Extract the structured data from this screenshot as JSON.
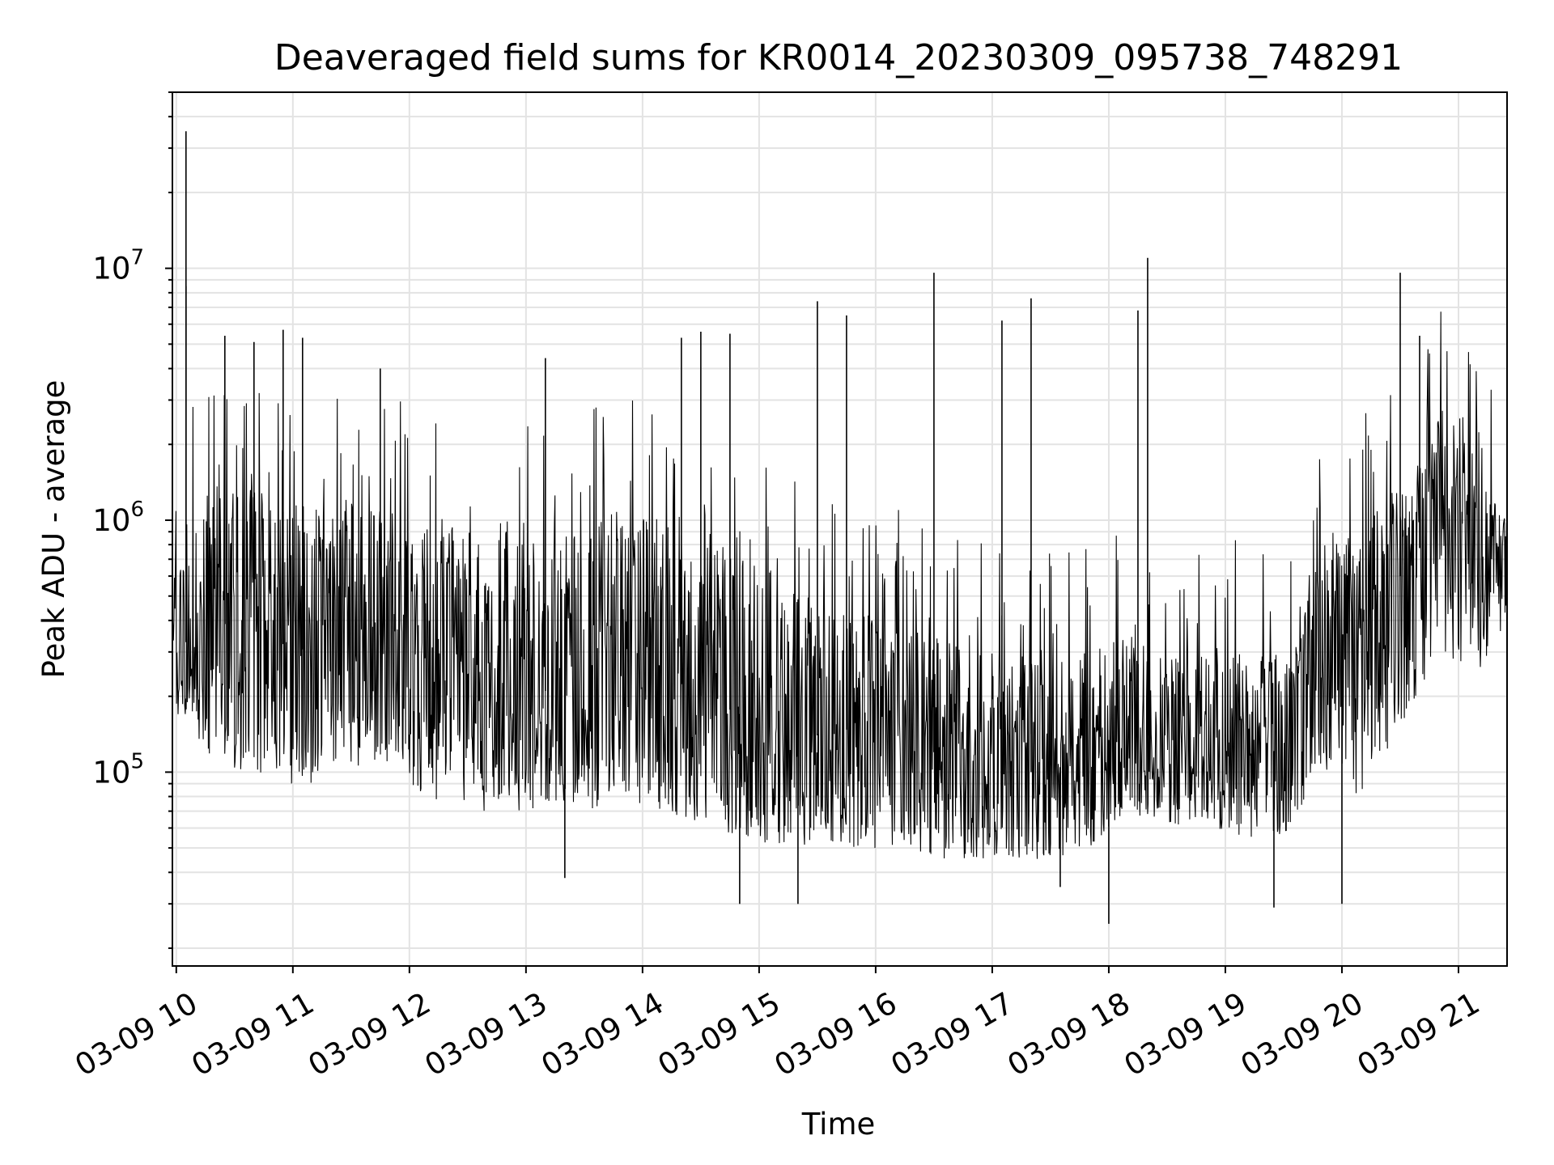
{
  "chart_data": {
    "type": "line",
    "title": "Deaveraged field sums for KR0014_20230309_095738_748291",
    "xlabel": "Time",
    "ylabel": "Peak ADU - average",
    "x_axis": {
      "kind": "time",
      "range": [
        "2023-03-09 09:58",
        "2023-03-09 21:25"
      ],
      "tick_values": [
        "2023-03-09 10:00",
        "2023-03-09 11:00",
        "2023-03-09 12:00",
        "2023-03-09 13:00",
        "2023-03-09 14:00",
        "2023-03-09 15:00",
        "2023-03-09 16:00",
        "2023-03-09 17:00",
        "2023-03-09 18:00",
        "2023-03-09 19:00",
        "2023-03-09 20:00",
        "2023-03-09 21:00"
      ],
      "tick_labels": [
        "03-09 10",
        "03-09 11",
        "03-09 12",
        "03-09 13",
        "03-09 14",
        "03-09 15",
        "03-09 16",
        "03-09 17",
        "03-09 18",
        "03-09 19",
        "03-09 20",
        "03-09 21"
      ]
    },
    "y_axis": {
      "scale": "log",
      "range": [
        17000,
        50000000
      ],
      "ticks": [
        {
          "value": 100000,
          "base": "10",
          "exp": "5"
        },
        {
          "value": 1000000,
          "base": "10",
          "exp": "6"
        },
        {
          "value": 10000000,
          "base": "10",
          "exp": "7"
        }
      ]
    },
    "grid": true,
    "line_color": "#000000",
    "series": [
      {
        "x": [
          "2023-03-09 09:58",
          "2023-03-09 10:10",
          "2023-03-09 10:30",
          "2023-03-09 10:50",
          "2023-03-09 11:10",
          "2023-03-09 11:30",
          "2023-03-09 11:50",
          "2023-03-09 12:10",
          "2023-03-09 12:30",
          "2023-03-09 12:50",
          "2023-03-09 13:10",
          "2023-03-09 13:30",
          "2023-03-09 13:50",
          "2023-03-09 14:10",
          "2023-03-09 14:30",
          "2023-03-09 14:50",
          "2023-03-09 15:10",
          "2023-03-09 15:30",
          "2023-03-09 15:50",
          "2023-03-09 16:10",
          "2023-03-09 16:30",
          "2023-03-09 16:50",
          "2023-03-09 17:10",
          "2023-03-09 17:30",
          "2023-03-09 17:50",
          "2023-03-09 18:10",
          "2023-03-09 18:30",
          "2023-03-09 18:50",
          "2023-03-09 19:10",
          "2023-03-09 19:30",
          "2023-03-09 19:50",
          "2023-03-09 20:10",
          "2023-03-09 20:30",
          "2023-03-09 20:50",
          "2023-03-09 21:10",
          "2023-03-09 21:25"
        ],
        "typical_y": [
          300000,
          350000,
          400000,
          330000,
          300000,
          320000,
          360000,
          260000,
          230000,
          220000,
          210000,
          230000,
          260000,
          250000,
          200000,
          170000,
          150000,
          140000,
          150000,
          135000,
          120000,
          110000,
          100000,
          100000,
          120000,
          150000,
          130000,
          130000,
          125000,
          120000,
          300000,
          350000,
          600000,
          1000000,
          700000,
          700000
        ],
        "spread_low_y": [
          150000,
          130000,
          100000,
          90000,
          90000,
          100000,
          100000,
          80000,
          70000,
          70000,
          70000,
          70000,
          70000,
          70000,
          60000,
          55000,
          50000,
          50000,
          50000,
          50000,
          45000,
          45000,
          45000,
          45000,
          50000,
          70000,
          60000,
          60000,
          55000,
          55000,
          100000,
          80000,
          150000,
          300000,
          250000,
          400000
        ],
        "spread_high_y": [
          700000,
          1200000,
          1500000,
          1300000,
          1200000,
          1200000,
          1100000,
          1000000,
          900000,
          900000,
          900000,
          1000000,
          1100000,
          1000000,
          900000,
          700000,
          600000,
          500000,
          450000,
          400000,
          350000,
          300000,
          300000,
          280000,
          300000,
          350000,
          320000,
          320000,
          300000,
          300000,
          800000,
          900000,
          1500000,
          2500000,
          1500000,
          1000000
        ]
      }
    ],
    "annotations": [
      {
        "x": "2023-03-09 10:05",
        "y": 35000000
      },
      {
        "x": "2023-03-09 10:05",
        "y": 8500000
      },
      {
        "x": "2023-03-09 10:25",
        "y": 5400000
      },
      {
        "x": "2023-03-09 10:40",
        "y": 5100000
      },
      {
        "x": "2023-03-09 10:55",
        "y": 5700000
      },
      {
        "x": "2023-03-09 11:05",
        "y": 5300000
      },
      {
        "x": "2023-03-09 11:45",
        "y": 4000000
      },
      {
        "x": "2023-03-09 13:10",
        "y": 4400000
      },
      {
        "x": "2023-03-09 14:20",
        "y": 5300000
      },
      {
        "x": "2023-03-09 14:30",
        "y": 5600000
      },
      {
        "x": "2023-03-09 14:45",
        "y": 5500000
      },
      {
        "x": "2023-03-09 15:30",
        "y": 7400000
      },
      {
        "x": "2023-03-09 15:45",
        "y": 6500000
      },
      {
        "x": "2023-03-09 16:30",
        "y": 9600000
      },
      {
        "x": "2023-03-09 17:05",
        "y": 6200000
      },
      {
        "x": "2023-03-09 17:20",
        "y": 7600000
      },
      {
        "x": "2023-03-09 18:15",
        "y": 6800000
      },
      {
        "x": "2023-03-09 18:20",
        "y": 11000000
      },
      {
        "x": "2023-03-09 20:30",
        "y": 9600000
      },
      {
        "x": "2023-03-09 20:40",
        "y": 5400000
      },
      {
        "x": "2023-03-09 13:20",
        "y": 38000
      },
      {
        "x": "2023-03-09 14:50",
        "y": 30000
      },
      {
        "x": "2023-03-09 15:20",
        "y": 30000
      },
      {
        "x": "2023-03-09 17:35",
        "y": 35000
      },
      {
        "x": "2023-03-09 18:00",
        "y": 25000
      },
      {
        "x": "2023-03-09 19:25",
        "y": 29000
      },
      {
        "x": "2023-03-09 20:00",
        "y": 30000
      }
    ]
  }
}
